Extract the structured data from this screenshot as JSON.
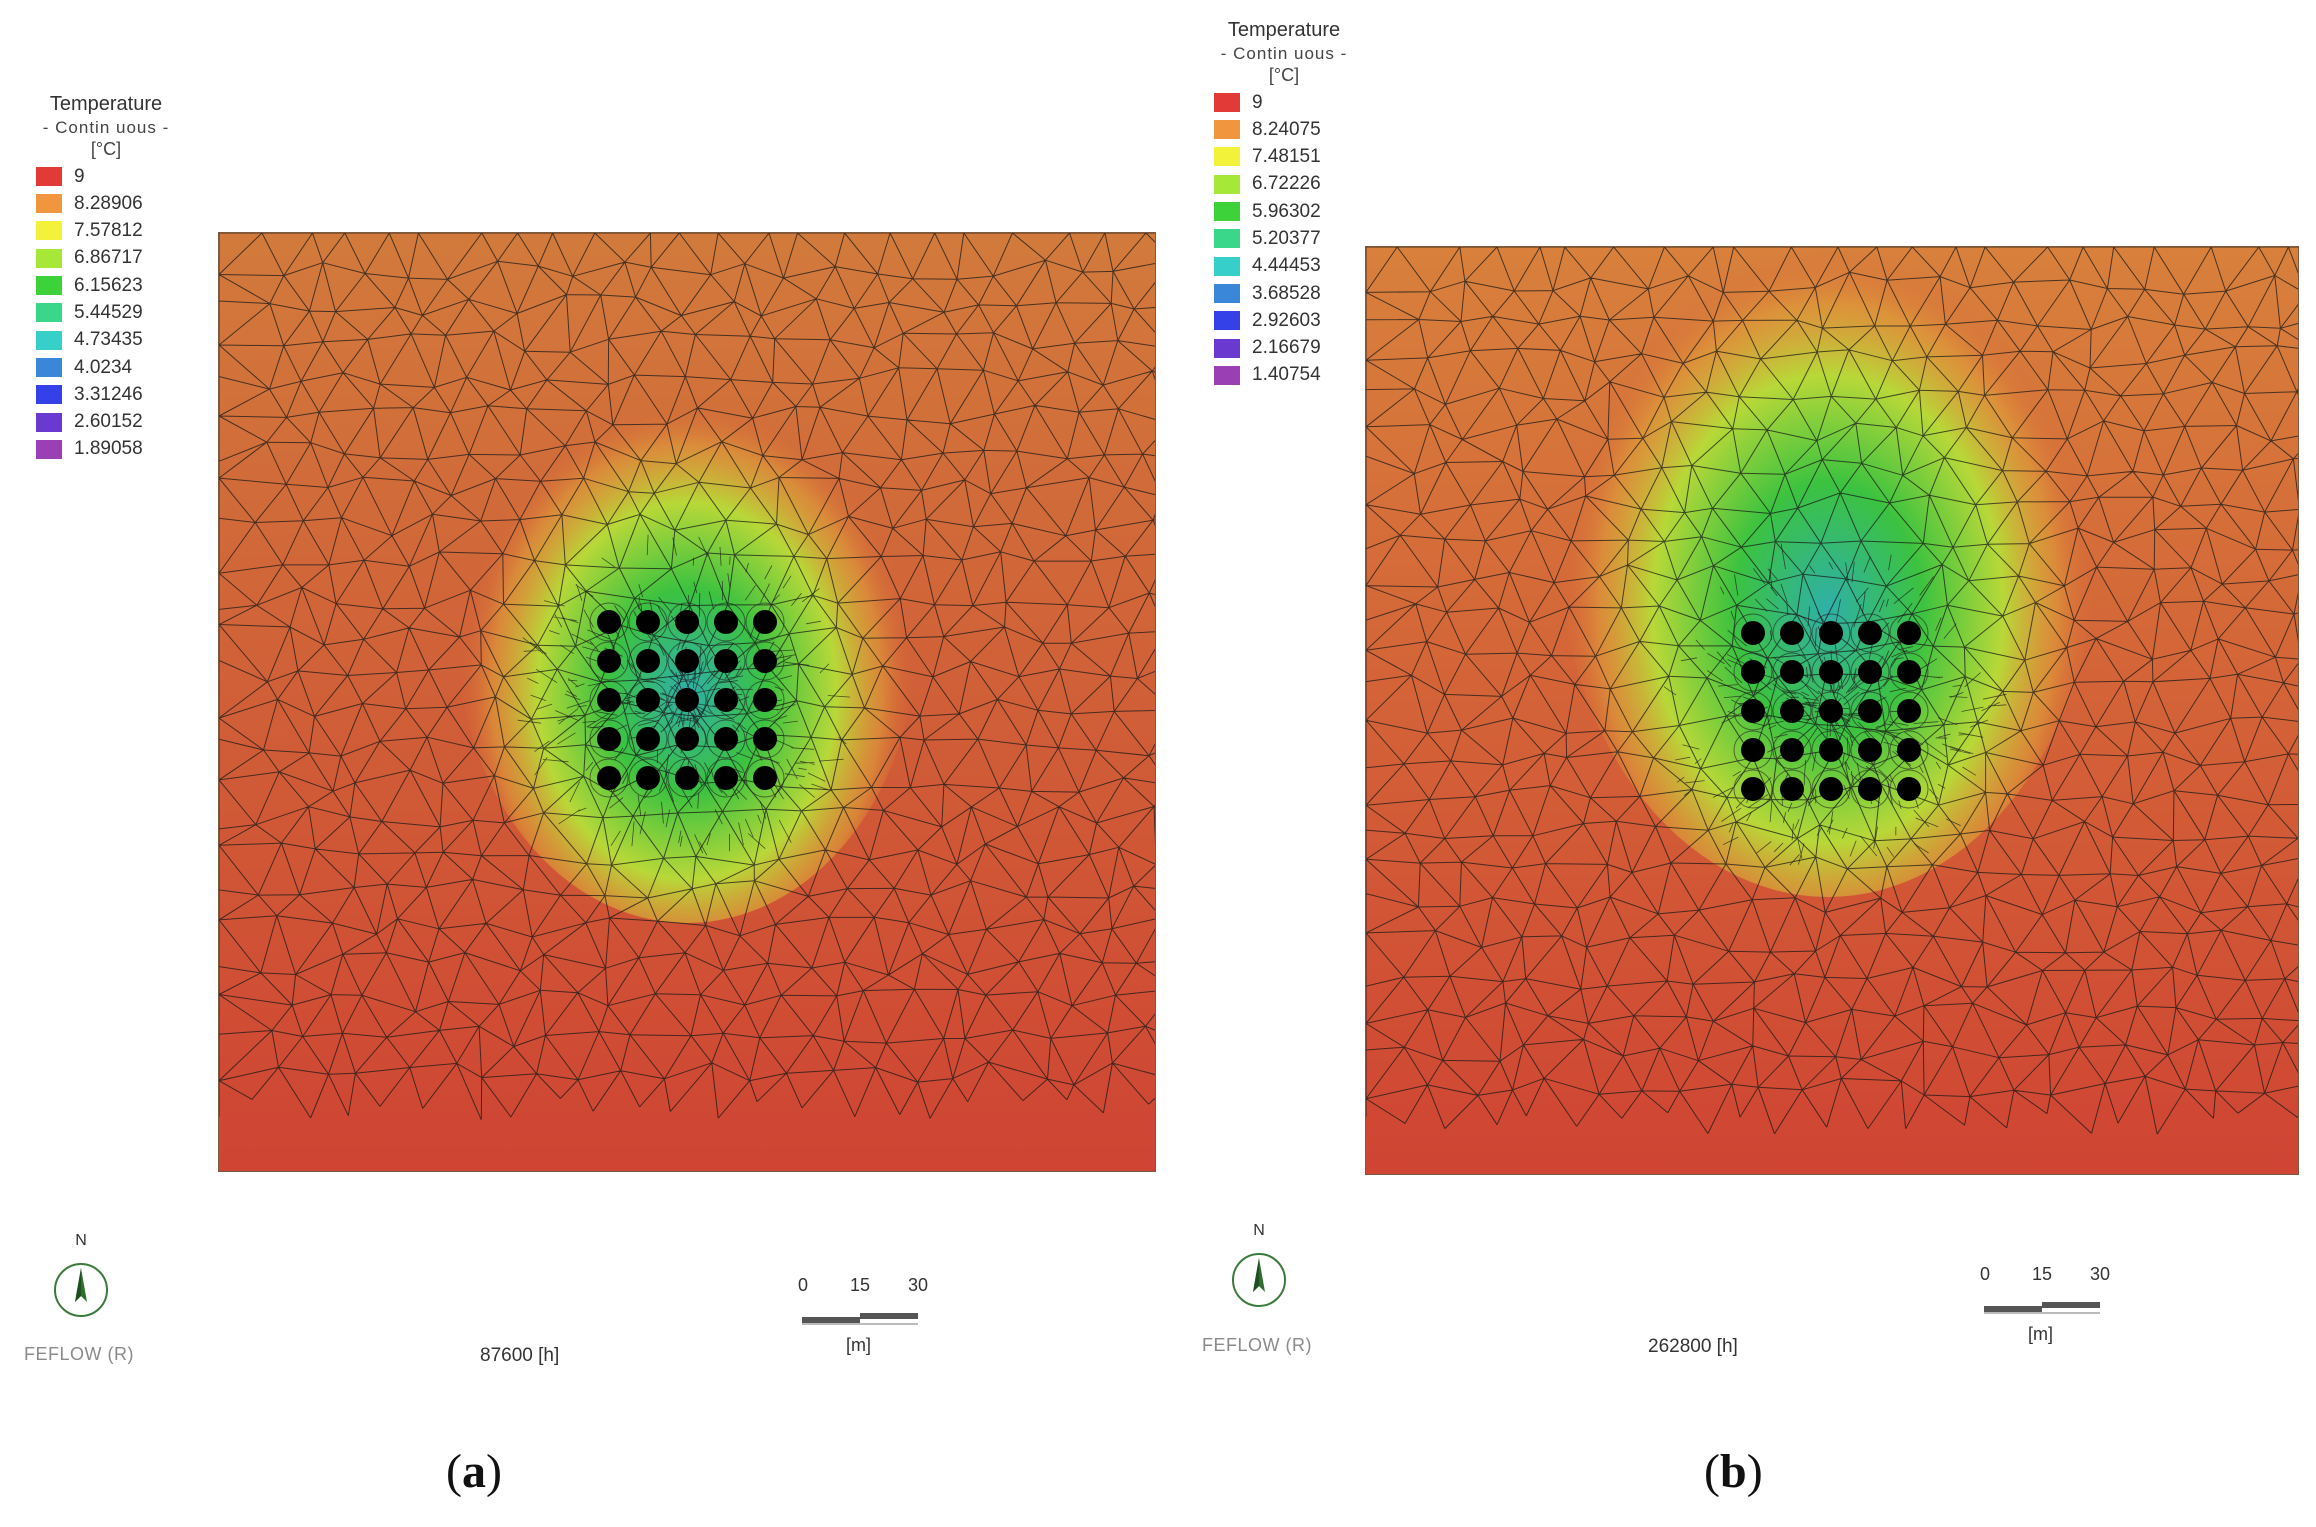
{
  "panels": [
    {
      "id": "a",
      "legend": {
        "title": "Temperature",
        "subtitle": "- Contin uous -",
        "unit": "[°C]",
        "items": [
          {
            "value": "9",
            "color": "#e23a36"
          },
          {
            "value": "8.28906",
            "color": "#f0963e"
          },
          {
            "value": "7.57812",
            "color": "#f2f23a"
          },
          {
            "value": "6.86717",
            "color": "#a6e838"
          },
          {
            "value": "6.15623",
            "color": "#3ed23a"
          },
          {
            "value": "5.44529",
            "color": "#3ad68a"
          },
          {
            "value": "4.73435",
            "color": "#36cfc9"
          },
          {
            "value": "4.0234",
            "color": "#3a86d8"
          },
          {
            "value": "3.31246",
            "color": "#3440e8"
          },
          {
            "value": "2.60152",
            "color": "#6a3ad0"
          },
          {
            "value": "1.89058",
            "color": "#9a40b4"
          }
        ]
      },
      "feflow_label": "FEFLOW (R)",
      "time_label": "87600 [h]",
      "north_label": "N",
      "scale": {
        "ticks": [
          "0",
          "15",
          "30"
        ],
        "unit": "[m]"
      },
      "caption_letter": "a"
    },
    {
      "id": "b",
      "legend": {
        "title": "Temperature",
        "subtitle": "- Contin uous -",
        "unit": "[°C]",
        "items": [
          {
            "value": "9",
            "color": "#e23a36"
          },
          {
            "value": "8.24075",
            "color": "#f0963e"
          },
          {
            "value": "7.48151",
            "color": "#f2f23a"
          },
          {
            "value": "6.72226",
            "color": "#a6e838"
          },
          {
            "value": "5.96302",
            "color": "#3ed23a"
          },
          {
            "value": "5.20377",
            "color": "#3ad68a"
          },
          {
            "value": "4.44453",
            "color": "#36cfc9"
          },
          {
            "value": "3.68528",
            "color": "#3a86d8"
          },
          {
            "value": "2.92603",
            "color": "#3440e8"
          },
          {
            "value": "2.16679",
            "color": "#6a3ad0"
          },
          {
            "value": "1.40754",
            "color": "#9a40b4"
          }
        ]
      },
      "feflow_label": "FEFLOW (R)",
      "time_label": "262800 [h]",
      "north_label": "N",
      "scale": {
        "ticks": [
          "0",
          "15",
          "30"
        ],
        "unit": "[m]"
      },
      "caption_letter": "b"
    }
  ],
  "borehole_grid": {
    "rows": 5,
    "cols": 5
  }
}
